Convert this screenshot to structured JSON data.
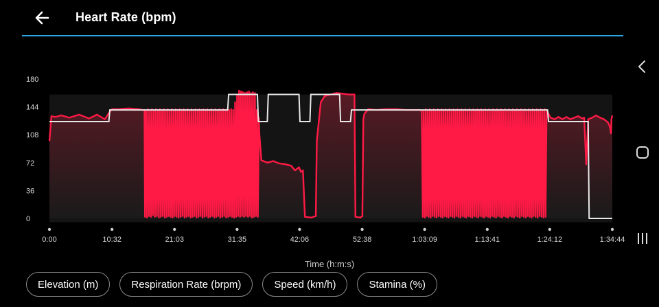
{
  "header": {
    "title": "Heart Rate (bpm)",
    "back_icon": "arrow-left-icon"
  },
  "nav": {
    "back": "chevron-left-icon",
    "home": "rounded-square-icon",
    "recents": "three-bars-icon"
  },
  "colors": {
    "accent": "#2aa7e6",
    "series": "#ff1a45",
    "zone_line": "#e8e8e8"
  },
  "chart_data": {
    "type": "area",
    "ylim": [
      0,
      180
    ],
    "yticks": [
      "0",
      "36",
      "72",
      "108",
      "144",
      "180"
    ],
    "xlim": [
      0,
      5684
    ],
    "xticks": [
      {
        "t": 0,
        "label": "0:00"
      },
      {
        "t": 632,
        "label": "10:32"
      },
      {
        "t": 1263,
        "label": "21:03"
      },
      {
        "t": 1895,
        "label": "31:35"
      },
      {
        "t": 2526,
        "label": "42:06"
      },
      {
        "t": 3158,
        "label": "52:38"
      },
      {
        "t": 3789,
        "label": "1:03:09"
      },
      {
        "t": 4421,
        "label": "1:13:41"
      },
      {
        "t": 5052,
        "label": "1:24:12"
      },
      {
        "t": 5684,
        "label": "1:34:44"
      }
    ],
    "xlabel": "Time (h:m:s)",
    "heart_rate": [
      [
        0,
        100
      ],
      [
        20,
        132
      ],
      [
        60,
        131
      ],
      [
        120,
        133
      ],
      [
        200,
        130
      ],
      [
        300,
        134
      ],
      [
        400,
        129
      ],
      [
        480,
        134
      ],
      [
        520,
        131
      ],
      [
        560,
        128
      ],
      [
        600,
        136
      ],
      [
        632,
        141
      ],
      [
        700,
        141
      ],
      [
        800,
        142
      ],
      [
        900,
        141
      ],
      [
        940,
        140
      ],
      [
        960,
        140
      ],
      [
        965,
        2
      ],
      [
        975,
        140
      ],
      [
        985,
        1
      ],
      [
        995,
        141
      ],
      [
        1005,
        3
      ],
      [
        1015,
        140
      ],
      [
        1025,
        2
      ],
      [
        1035,
        141
      ],
      [
        1045,
        4
      ],
      [
        1055,
        140
      ],
      [
        1065,
        2
      ],
      [
        1075,
        141
      ],
      [
        1085,
        3
      ],
      [
        1095,
        140
      ],
      [
        1105,
        1
      ],
      [
        1115,
        141
      ],
      [
        1125,
        2
      ],
      [
        1135,
        140
      ],
      [
        1145,
        3
      ],
      [
        1155,
        141
      ],
      [
        1165,
        1
      ],
      [
        1175,
        140
      ],
      [
        1185,
        2
      ],
      [
        1195,
        141
      ],
      [
        1205,
        3
      ],
      [
        1215,
        140
      ],
      [
        1225,
        2
      ],
      [
        1235,
        141
      ],
      [
        1245,
        1
      ],
      [
        1255,
        140
      ],
      [
        1265,
        3
      ],
      [
        1275,
        141
      ],
      [
        1285,
        2
      ],
      [
        1295,
        140
      ],
      [
        1305,
        1
      ],
      [
        1315,
        141
      ],
      [
        1325,
        2
      ],
      [
        1335,
        140
      ],
      [
        1345,
        3
      ],
      [
        1355,
        141
      ],
      [
        1365,
        1
      ],
      [
        1375,
        140
      ],
      [
        1385,
        2
      ],
      [
        1395,
        141
      ],
      [
        1405,
        3
      ],
      [
        1415,
        140
      ],
      [
        1425,
        1
      ],
      [
        1435,
        141
      ],
      [
        1445,
        2
      ],
      [
        1455,
        140
      ],
      [
        1465,
        3
      ],
      [
        1475,
        141
      ],
      [
        1485,
        1
      ],
      [
        1495,
        140
      ],
      [
        1505,
        2
      ],
      [
        1515,
        141
      ],
      [
        1525,
        3
      ],
      [
        1535,
        140
      ],
      [
        1545,
        1
      ],
      [
        1555,
        141
      ],
      [
        1565,
        2
      ],
      [
        1575,
        140
      ],
      [
        1585,
        3
      ],
      [
        1595,
        141
      ],
      [
        1605,
        1
      ],
      [
        1615,
        140
      ],
      [
        1625,
        2
      ],
      [
        1635,
        141
      ],
      [
        1645,
        3
      ],
      [
        1655,
        140
      ],
      [
        1665,
        1
      ],
      [
        1675,
        141
      ],
      [
        1685,
        2
      ],
      [
        1695,
        140
      ],
      [
        1705,
        3
      ],
      [
        1715,
        141
      ],
      [
        1725,
        1
      ],
      [
        1735,
        140
      ],
      [
        1745,
        2
      ],
      [
        1755,
        141
      ],
      [
        1765,
        3
      ],
      [
        1775,
        140
      ],
      [
        1785,
        1
      ],
      [
        1795,
        141
      ],
      [
        1805,
        2
      ],
      [
        1815,
        140
      ],
      [
        1825,
        3
      ],
      [
        1835,
        141
      ],
      [
        1845,
        2
      ],
      [
        1855,
        140
      ],
      [
        1865,
        1
      ],
      [
        1875,
        150
      ],
      [
        1885,
        2
      ],
      [
        1895,
        160
      ],
      [
        1905,
        3
      ],
      [
        1915,
        165
      ],
      [
        1925,
        2
      ],
      [
        1935,
        164
      ],
      [
        1945,
        3
      ],
      [
        1955,
        163
      ],
      [
        1965,
        2
      ],
      [
        1975,
        162
      ],
      [
        1985,
        3
      ],
      [
        1995,
        163
      ],
      [
        2005,
        2
      ],
      [
        2015,
        164
      ],
      [
        2025,
        3
      ],
      [
        2035,
        162
      ],
      [
        2045,
        1
      ],
      [
        2055,
        163
      ],
      [
        2065,
        2
      ],
      [
        2075,
        162
      ],
      [
        2085,
        3
      ],
      [
        2095,
        140
      ],
      [
        2105,
        2
      ],
      [
        2115,
        130
      ],
      [
        2120,
        110
      ],
      [
        2140,
        75
      ],
      [
        2200,
        72
      ],
      [
        2260,
        74
      ],
      [
        2320,
        71
      ],
      [
        2380,
        70
      ],
      [
        2440,
        68
      ],
      [
        2480,
        62
      ],
      [
        2520,
        66
      ],
      [
        2540,
        60
      ],
      [
        2560,
        62
      ],
      [
        2580,
        2
      ],
      [
        2640,
        1
      ],
      [
        2690,
        3
      ],
      [
        2700,
        100
      ],
      [
        2720,
        125
      ],
      [
        2740,
        150
      ],
      [
        2780,
        158
      ],
      [
        2840,
        160
      ],
      [
        2900,
        162
      ],
      [
        2960,
        161
      ],
      [
        3020,
        160
      ],
      [
        3080,
        160
      ],
      [
        3090,
        2
      ],
      [
        3140,
        1
      ],
      [
        3160,
        3
      ],
      [
        3170,
        128
      ],
      [
        3180,
        135
      ],
      [
        3220,
        141
      ],
      [
        3300,
        140
      ],
      [
        3400,
        141
      ],
      [
        3500,
        141
      ],
      [
        3600,
        140
      ],
      [
        3700,
        140
      ],
      [
        3740,
        140
      ],
      [
        3760,
        139
      ],
      [
        3770,
        2
      ],
      [
        3780,
        140
      ],
      [
        3790,
        1
      ],
      [
        3800,
        141
      ],
      [
        3810,
        3
      ],
      [
        3820,
        140
      ],
      [
        3830,
        2
      ],
      [
        3840,
        141
      ],
      [
        3850,
        1
      ],
      [
        3860,
        140
      ],
      [
        3870,
        3
      ],
      [
        3880,
        141
      ],
      [
        3890,
        2
      ],
      [
        3900,
        140
      ],
      [
        3910,
        1
      ],
      [
        3920,
        141
      ],
      [
        3930,
        3
      ],
      [
        3940,
        140
      ],
      [
        3950,
        2
      ],
      [
        3960,
        141
      ],
      [
        3970,
        1
      ],
      [
        3980,
        140
      ],
      [
        3990,
        3
      ],
      [
        4000,
        141
      ],
      [
        4010,
        2
      ],
      [
        4020,
        140
      ],
      [
        4030,
        1
      ],
      [
        4040,
        141
      ],
      [
        4050,
        3
      ],
      [
        4060,
        140
      ],
      [
        4070,
        2
      ],
      [
        4080,
        141
      ],
      [
        4090,
        1
      ],
      [
        4100,
        140
      ],
      [
        4110,
        3
      ],
      [
        4120,
        141
      ],
      [
        4130,
        2
      ],
      [
        4140,
        140
      ],
      [
        4150,
        1
      ],
      [
        4160,
        141
      ],
      [
        4170,
        3
      ],
      [
        4180,
        140
      ],
      [
        4190,
        2
      ],
      [
        4200,
        141
      ],
      [
        4210,
        1
      ],
      [
        4220,
        140
      ],
      [
        4230,
        3
      ],
      [
        4240,
        141
      ],
      [
        4250,
        2
      ],
      [
        4260,
        140
      ],
      [
        4270,
        1
      ],
      [
        4280,
        141
      ],
      [
        4290,
        3
      ],
      [
        4300,
        140
      ],
      [
        4310,
        2
      ],
      [
        4320,
        141
      ],
      [
        4330,
        1
      ],
      [
        4340,
        140
      ],
      [
        4350,
        3
      ],
      [
        4360,
        141
      ],
      [
        4370,
        2
      ],
      [
        4380,
        140
      ],
      [
        4390,
        1
      ],
      [
        4400,
        141
      ],
      [
        4410,
        3
      ],
      [
        4420,
        140
      ],
      [
        4430,
        2
      ],
      [
        4440,
        141
      ],
      [
        4450,
        1
      ],
      [
        4460,
        140
      ],
      [
        4470,
        3
      ],
      [
        4480,
        141
      ],
      [
        4490,
        2
      ],
      [
        4500,
        140
      ],
      [
        4510,
        1
      ],
      [
        4520,
        141
      ],
      [
        4530,
        3
      ],
      [
        4540,
        140
      ],
      [
        4550,
        2
      ],
      [
        4560,
        141
      ],
      [
        4570,
        1
      ],
      [
        4580,
        140
      ],
      [
        4590,
        3
      ],
      [
        4600,
        141
      ],
      [
        4610,
        2
      ],
      [
        4620,
        140
      ],
      [
        4630,
        1
      ],
      [
        4640,
        141
      ],
      [
        4650,
        3
      ],
      [
        4660,
        140
      ],
      [
        4670,
        2
      ],
      [
        4680,
        141
      ],
      [
        4690,
        1
      ],
      [
        4700,
        140
      ],
      [
        4710,
        3
      ],
      [
        4720,
        141
      ],
      [
        4730,
        2
      ],
      [
        4740,
        140
      ],
      [
        4750,
        1
      ],
      [
        4760,
        141
      ],
      [
        4770,
        3
      ],
      [
        4780,
        140
      ],
      [
        4790,
        2
      ],
      [
        4800,
        141
      ],
      [
        4810,
        1
      ],
      [
        4820,
        140
      ],
      [
        4830,
        3
      ],
      [
        4840,
        141
      ],
      [
        4850,
        2
      ],
      [
        4860,
        140
      ],
      [
        4870,
        1
      ],
      [
        4880,
        141
      ],
      [
        4890,
        3
      ],
      [
        4900,
        140
      ],
      [
        4910,
        2
      ],
      [
        4920,
        141
      ],
      [
        4930,
        1
      ],
      [
        4940,
        140
      ],
      [
        4950,
        3
      ],
      [
        4960,
        141
      ],
      [
        4970,
        2
      ],
      [
        4980,
        140
      ],
      [
        4990,
        1
      ],
      [
        5000,
        141
      ],
      [
        5010,
        2
      ],
      [
        5020,
        140
      ],
      [
        5040,
        135
      ],
      [
        5060,
        130
      ],
      [
        5100,
        128
      ],
      [
        5140,
        131
      ],
      [
        5180,
        128
      ],
      [
        5220,
        131
      ],
      [
        5260,
        128
      ],
      [
        5300,
        130
      ],
      [
        5340,
        132
      ],
      [
        5380,
        129
      ],
      [
        5400,
        130
      ],
      [
        5420,
        70
      ],
      [
        5440,
        128
      ],
      [
        5480,
        130
      ],
      [
        5520,
        133
      ],
      [
        5560,
        130
      ],
      [
        5600,
        128
      ],
      [
        5640,
        124
      ],
      [
        5660,
        118
      ],
      [
        5670,
        110
      ],
      [
        5675,
        128
      ],
      [
        5684,
        133
      ]
    ],
    "zone_line": [
      [
        0,
        125
      ],
      [
        600,
        125
      ],
      [
        610,
        140
      ],
      [
        1800,
        140
      ],
      [
        1810,
        160
      ],
      [
        2100,
        160
      ],
      [
        2110,
        125
      ],
      [
        2200,
        125
      ],
      [
        2210,
        160
      ],
      [
        2520,
        160
      ],
      [
        2530,
        125
      ],
      [
        2630,
        125
      ],
      [
        2640,
        160
      ],
      [
        2930,
        160
      ],
      [
        2940,
        125
      ],
      [
        3040,
        125
      ],
      [
        3050,
        140
      ],
      [
        5030,
        140
      ],
      [
        5040,
        125
      ],
      [
        5440,
        125
      ],
      [
        5450,
        0
      ],
      [
        5684,
        0
      ]
    ]
  },
  "chips": [
    "Elevation (m)",
    "Respiration Rate (brpm)",
    "Speed (km/h)",
    "Stamina (%)"
  ]
}
